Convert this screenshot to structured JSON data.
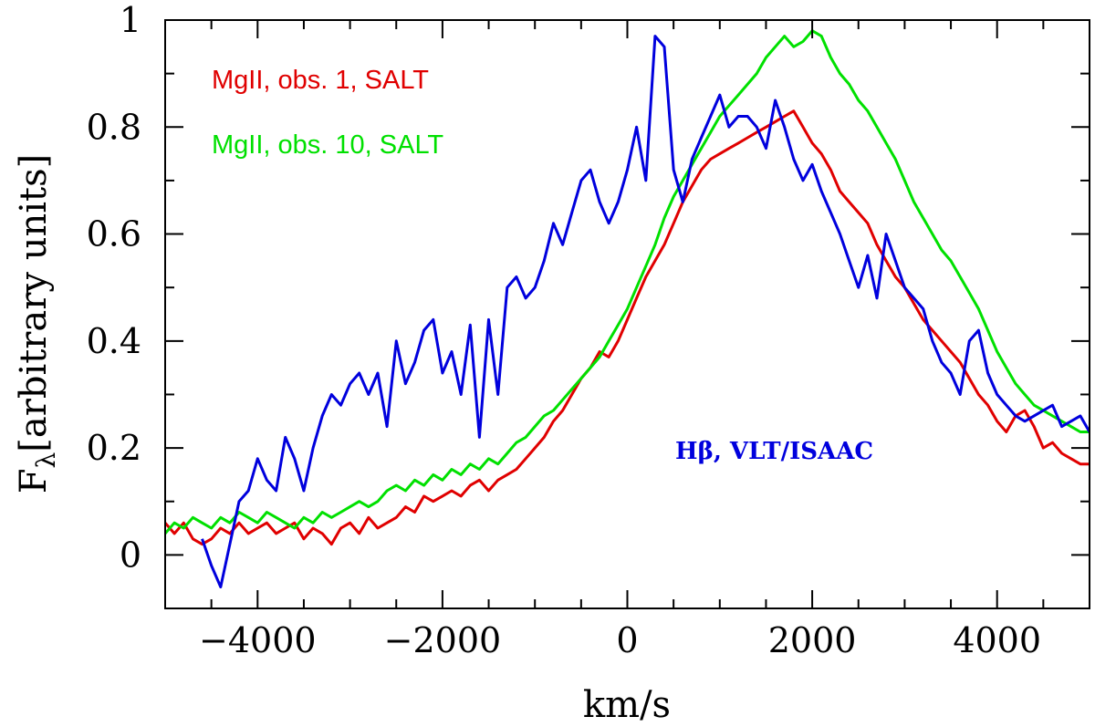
{
  "chart_data": {
    "type": "line",
    "title": "",
    "xlabel": "km/s",
    "ylabel": "F",
    "ylabel_subscript": "λ",
    "ylabel_suffix": "[arbitrary units]",
    "xlim": [
      -5000,
      5000
    ],
    "ylim": [
      -0.1,
      1.0
    ],
    "grid": false,
    "x_ticks": [
      -4000,
      -2000,
      0,
      2000,
      4000
    ],
    "x_tick_labels": [
      "−4000",
      "−2000",
      "0",
      "2000",
      "4000"
    ],
    "y_ticks": [
      0,
      0.2,
      0.4,
      0.6,
      0.8,
      1
    ],
    "y_tick_labels": [
      "0",
      "0.2",
      "0.4",
      "0.6",
      "0.8",
      "1"
    ],
    "legend_placement": "top-left",
    "annotations": [
      {
        "text": "Hβ,  VLT/ISAAC",
        "x": 2200,
        "y": 0.2,
        "color": "#0000dd"
      }
    ],
    "series": [
      {
        "name": "MgII, obs. 1, SALT",
        "color": "#e00000",
        "x": [
          -5000,
          -4900,
          -4800,
          -4700,
          -4600,
          -4500,
          -4400,
          -4300,
          -4200,
          -4100,
          -4000,
          -3900,
          -3800,
          -3700,
          -3600,
          -3500,
          -3400,
          -3300,
          -3200,
          -3100,
          -3000,
          -2900,
          -2800,
          -2700,
          -2600,
          -2500,
          -2400,
          -2300,
          -2200,
          -2100,
          -2000,
          -1900,
          -1800,
          -1700,
          -1600,
          -1500,
          -1400,
          -1300,
          -1200,
          -1100,
          -1000,
          -900,
          -800,
          -700,
          -600,
          -500,
          -400,
          -300,
          -200,
          -100,
          0,
          100,
          200,
          300,
          400,
          500,
          600,
          700,
          800,
          900,
          1000,
          1100,
          1200,
          1300,
          1400,
          1500,
          1600,
          1700,
          1800,
          1900,
          2000,
          2100,
          2200,
          2300,
          2400,
          2500,
          2600,
          2700,
          2800,
          2900,
          3000,
          3100,
          3200,
          3300,
          3400,
          3500,
          3600,
          3700,
          3800,
          3900,
          4000,
          4100,
          4200,
          4300,
          4400,
          4500,
          4600,
          4700,
          4800,
          4900,
          5000
        ],
        "values": [
          0.06,
          0.04,
          0.06,
          0.03,
          0.02,
          0.03,
          0.05,
          0.04,
          0.06,
          0.04,
          0.05,
          0.06,
          0.04,
          0.05,
          0.06,
          0.03,
          0.05,
          0.04,
          0.02,
          0.05,
          0.06,
          0.04,
          0.07,
          0.05,
          0.06,
          0.07,
          0.09,
          0.08,
          0.11,
          0.1,
          0.11,
          0.12,
          0.11,
          0.13,
          0.14,
          0.12,
          0.14,
          0.15,
          0.16,
          0.18,
          0.2,
          0.22,
          0.25,
          0.27,
          0.3,
          0.33,
          0.35,
          0.38,
          0.37,
          0.4,
          0.44,
          0.48,
          0.52,
          0.55,
          0.58,
          0.62,
          0.66,
          0.69,
          0.72,
          0.74,
          0.75,
          0.76,
          0.77,
          0.78,
          0.79,
          0.8,
          0.81,
          0.82,
          0.83,
          0.8,
          0.77,
          0.75,
          0.72,
          0.68,
          0.66,
          0.64,
          0.62,
          0.58,
          0.55,
          0.52,
          0.5,
          0.47,
          0.44,
          0.42,
          0.4,
          0.38,
          0.36,
          0.33,
          0.3,
          0.28,
          0.25,
          0.23,
          0.26,
          0.27,
          0.24,
          0.2,
          0.21,
          0.19,
          0.18,
          0.17,
          0.17
        ]
      },
      {
        "name": "MgII, obs. 10, SALT",
        "color": "#00e000",
        "x": [
          -5000,
          -4900,
          -4800,
          -4700,
          -4600,
          -4500,
          -4400,
          -4300,
          -4200,
          -4100,
          -4000,
          -3900,
          -3800,
          -3700,
          -3600,
          -3500,
          -3400,
          -3300,
          -3200,
          -3100,
          -3000,
          -2900,
          -2800,
          -2700,
          -2600,
          -2500,
          -2400,
          -2300,
          -2200,
          -2100,
          -2000,
          -1900,
          -1800,
          -1700,
          -1600,
          -1500,
          -1400,
          -1300,
          -1200,
          -1100,
          -1000,
          -900,
          -800,
          -700,
          -600,
          -500,
          -400,
          -300,
          -200,
          -100,
          0,
          100,
          200,
          300,
          400,
          500,
          600,
          700,
          800,
          900,
          1000,
          1100,
          1200,
          1300,
          1400,
          1500,
          1600,
          1700,
          1800,
          1900,
          2000,
          2100,
          2200,
          2300,
          2400,
          2500,
          2600,
          2700,
          2800,
          2900,
          3000,
          3100,
          3200,
          3300,
          3400,
          3500,
          3600,
          3700,
          3800,
          3900,
          4000,
          4100,
          4200,
          4300,
          4400,
          4500,
          4600,
          4700,
          4800,
          4900,
          5000
        ],
        "values": [
          0.04,
          0.06,
          0.05,
          0.07,
          0.06,
          0.05,
          0.07,
          0.06,
          0.08,
          0.07,
          0.06,
          0.08,
          0.07,
          0.06,
          0.05,
          0.07,
          0.06,
          0.08,
          0.07,
          0.08,
          0.09,
          0.1,
          0.09,
          0.1,
          0.12,
          0.13,
          0.12,
          0.14,
          0.13,
          0.15,
          0.14,
          0.16,
          0.15,
          0.17,
          0.16,
          0.18,
          0.17,
          0.19,
          0.21,
          0.22,
          0.24,
          0.26,
          0.27,
          0.29,
          0.31,
          0.33,
          0.35,
          0.37,
          0.4,
          0.43,
          0.46,
          0.5,
          0.54,
          0.58,
          0.63,
          0.67,
          0.7,
          0.73,
          0.76,
          0.79,
          0.82,
          0.84,
          0.86,
          0.88,
          0.9,
          0.93,
          0.95,
          0.97,
          0.95,
          0.96,
          0.98,
          0.97,
          0.93,
          0.9,
          0.88,
          0.85,
          0.83,
          0.8,
          0.77,
          0.74,
          0.7,
          0.66,
          0.63,
          0.6,
          0.57,
          0.55,
          0.52,
          0.49,
          0.46,
          0.42,
          0.38,
          0.35,
          0.32,
          0.3,
          0.28,
          0.27,
          0.26,
          0.25,
          0.24,
          0.23,
          0.23
        ]
      },
      {
        "name": "Hβ, VLT/ISAAC",
        "color": "#0000dd",
        "x": [
          -4600,
          -4500,
          -4400,
          -4300,
          -4200,
          -4100,
          -4000,
          -3900,
          -3800,
          -3700,
          -3600,
          -3500,
          -3400,
          -3300,
          -3200,
          -3100,
          -3000,
          -2900,
          -2800,
          -2700,
          -2600,
          -2500,
          -2400,
          -2300,
          -2200,
          -2100,
          -2000,
          -1900,
          -1800,
          -1700,
          -1600,
          -1500,
          -1400,
          -1300,
          -1200,
          -1100,
          -1000,
          -900,
          -800,
          -700,
          -600,
          -500,
          -400,
          -300,
          -200,
          -100,
          0,
          100,
          200,
          300,
          400,
          500,
          600,
          700,
          800,
          900,
          1000,
          1100,
          1200,
          1300,
          1400,
          1500,
          1600,
          1700,
          1800,
          1900,
          2000,
          2100,
          2200,
          2300,
          2400,
          2500,
          2600,
          2700,
          2800,
          2900,
          3000,
          3100,
          3200,
          3300,
          3400,
          3500,
          3600,
          3700,
          3800,
          3900,
          4000,
          4100,
          4200,
          4300,
          4400,
          4500,
          4600,
          4700,
          4800,
          4900,
          5000
        ],
        "values": [
          0.03,
          -0.02,
          -0.06,
          0.02,
          0.1,
          0.12,
          0.18,
          0.14,
          0.12,
          0.22,
          0.18,
          0.12,
          0.2,
          0.26,
          0.3,
          0.28,
          0.32,
          0.34,
          0.3,
          0.34,
          0.24,
          0.4,
          0.32,
          0.36,
          0.42,
          0.44,
          0.34,
          0.38,
          0.3,
          0.43,
          0.22,
          0.44,
          0.3,
          0.5,
          0.52,
          0.48,
          0.5,
          0.55,
          0.62,
          0.58,
          0.64,
          0.7,
          0.72,
          0.66,
          0.62,
          0.66,
          0.72,
          0.8,
          0.7,
          0.97,
          0.95,
          0.72,
          0.66,
          0.74,
          0.78,
          0.82,
          0.86,
          0.8,
          0.82,
          0.82,
          0.8,
          0.76,
          0.85,
          0.8,
          0.74,
          0.7,
          0.73,
          0.68,
          0.64,
          0.6,
          0.55,
          0.5,
          0.56,
          0.48,
          0.6,
          0.55,
          0.5,
          0.48,
          0.46,
          0.4,
          0.36,
          0.34,
          0.3,
          0.4,
          0.42,
          0.34,
          0.3,
          0.28,
          0.26,
          0.25,
          0.26,
          0.27,
          0.28,
          0.24,
          0.25,
          0.26,
          0.23
        ]
      }
    ]
  }
}
